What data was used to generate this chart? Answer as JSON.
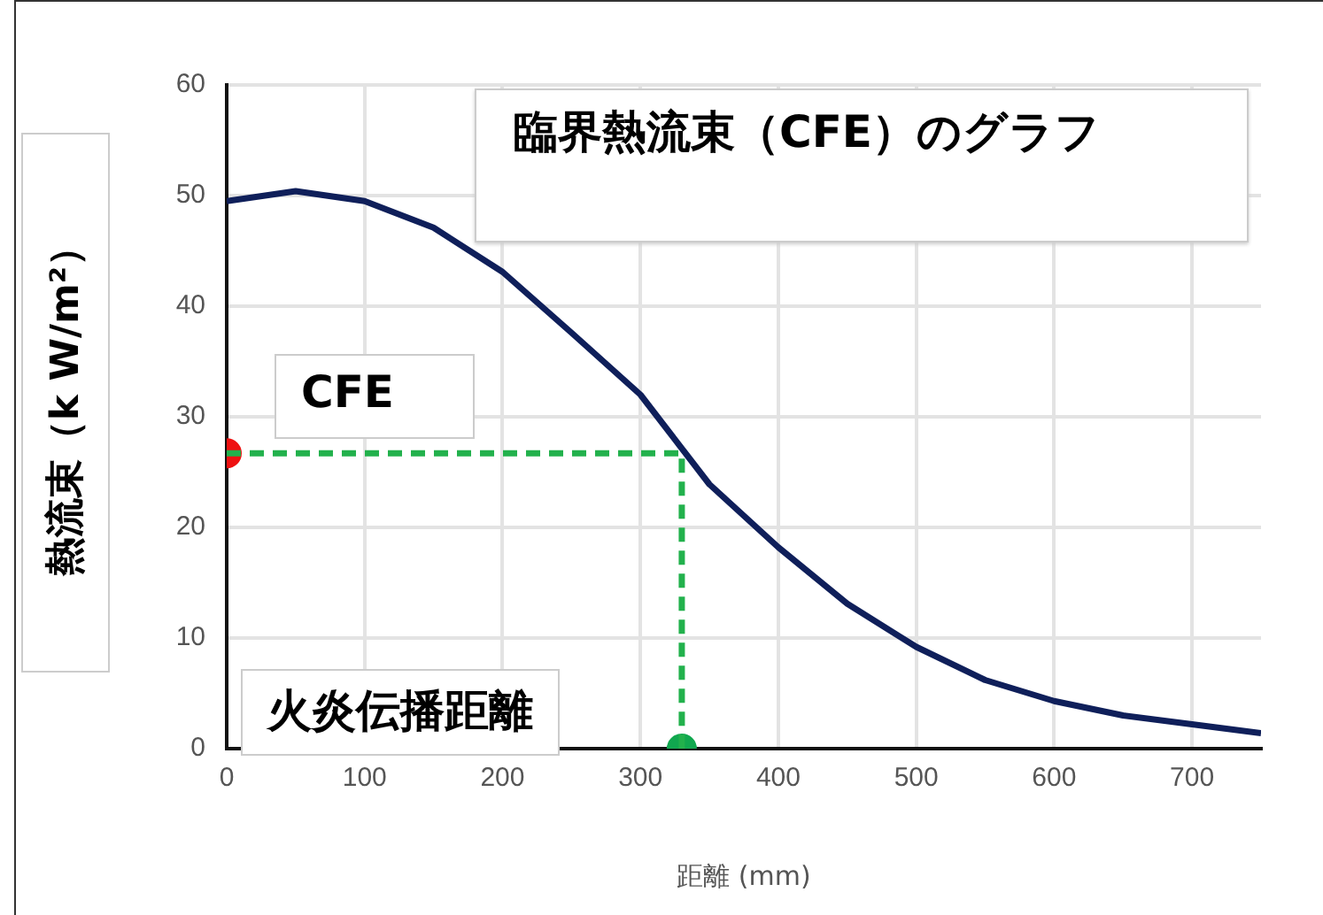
{
  "chart_data": {
    "type": "line",
    "title": "臨界熱流束（CFE）のグラフ",
    "xlabel": "距離 (mm)",
    "ylabel": "熱流束（k W/m²）",
    "annotations": [
      {
        "text": "CFE",
        "x": 0,
        "y": 26.7
      },
      "火炎伝播距離"
    ],
    "series": [
      {
        "color": "#0f1f5a",
        "marker": "none",
        "x": [
          0,
          50,
          100,
          150,
          200,
          250,
          300,
          350,
          400,
          450,
          500,
          550,
          600,
          650,
          700,
          750
        ],
        "values": [
          49.5,
          50.4,
          49.5,
          47.1,
          43.1,
          37.6,
          32,
          23.9,
          18.2,
          13.1,
          9.2,
          6.2,
          4.3,
          3.0,
          2.2,
          1.4
        ]
      },
      {
        "type": "line",
        "color": "#22b14c",
        "marker": "none",
        "line_style": "dashed",
        "x": [
          0,
          330,
          330
        ],
        "values": [
          26.7,
          26.7,
          0
        ]
      },
      {
        "type": "scatter",
        "color": "#ee1111",
        "marker": "circle",
        "x": [
          0
        ],
        "values": [
          26.7
        ]
      },
      {
        "type": "scatter",
        "color": "#11a84f",
        "marker": "circle",
        "x": [
          330
        ],
        "values": [
          0
        ]
      }
    ],
    "xlim": [
      0,
      750
    ],
    "xticks": [
      0,
      100,
      200,
      300,
      400,
      500,
      600,
      700
    ],
    "ylim": [
      0,
      60
    ],
    "yticks": [
      0,
      10,
      20,
      30,
      40,
      50,
      60
    ],
    "grid": true
  }
}
